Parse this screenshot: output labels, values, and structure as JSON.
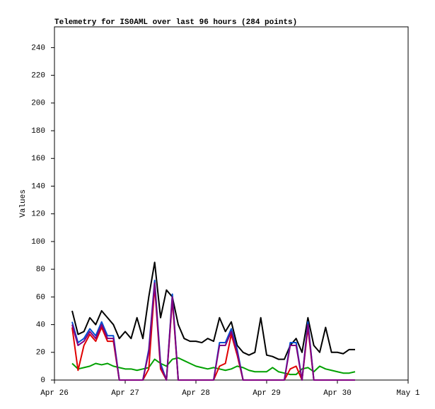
{
  "chart_data": {
    "type": "line",
    "title": "Telemetry for IS0AML over last 96 hours (284 points)",
    "y_label": "Values",
    "x": [
      6,
      8,
      10,
      12,
      14,
      16,
      18,
      20,
      22,
      24,
      26,
      28,
      30,
      32,
      34,
      36,
      38,
      40,
      42,
      44,
      46,
      48,
      50,
      52,
      54,
      56,
      58,
      60,
      62,
      64,
      66,
      68,
      70,
      72,
      74,
      76,
      78,
      80,
      82,
      84,
      86,
      88,
      90,
      92,
      94,
      96,
      98,
      100,
      102
    ],
    "xlim": [
      0,
      120
    ],
    "xticks": [
      {
        "value": 0,
        "label": "Apr 26"
      },
      {
        "value": 24,
        "label": "Apr 27"
      },
      {
        "value": 48,
        "label": "Apr 28"
      },
      {
        "value": 72,
        "label": "Apr 29"
      },
      {
        "value": 96,
        "label": "Apr 30"
      },
      {
        "value": 120,
        "label": "May 1"
      }
    ],
    "ylim": [
      0,
      255
    ],
    "yticks": [
      0,
      20,
      40,
      60,
      80,
      100,
      120,
      140,
      160,
      180,
      200,
      220,
      240
    ],
    "grid": false,
    "series": [
      {
        "color": "#000000",
        "values": [
          50,
          33,
          35,
          45,
          40,
          50,
          45,
          40,
          30,
          35,
          30,
          45,
          30,
          60,
          85,
          45,
          65,
          60,
          40,
          30,
          28,
          28,
          27,
          30,
          28,
          45,
          35,
          42,
          25,
          20,
          18,
          20,
          45,
          18,
          17,
          15,
          15,
          25,
          30,
          20,
          45,
          25,
          20,
          38,
          20,
          20,
          19,
          22,
          22
        ]
      },
      {
        "color": "#00a000",
        "values": [
          12,
          8,
          9,
          10,
          12,
          11,
          12,
          10,
          9,
          8,
          8,
          7,
          8,
          9,
          15,
          12,
          10,
          15,
          16,
          14,
          12,
          10,
          9,
          8,
          9,
          8,
          7,
          8,
          10,
          9,
          7,
          6,
          6,
          6,
          9,
          6,
          5,
          4,
          4,
          8,
          9,
          6,
          10,
          8,
          7,
          6,
          5,
          5,
          6
        ]
      },
      {
        "color": "#e00000",
        "values": [
          38,
          7,
          25,
          33,
          28,
          38,
          28,
          28,
          0,
          0,
          0,
          0,
          0,
          8,
          68,
          8,
          0,
          58,
          0,
          0,
          0,
          0,
          0,
          0,
          0,
          10,
          12,
          33,
          18,
          0,
          0,
          0,
          0,
          0,
          0,
          0,
          0,
          8,
          10,
          0,
          38,
          0,
          0,
          0,
          0,
          0,
          0,
          0,
          0
        ]
      },
      {
        "color": "#0050d0",
        "values": [
          42,
          27,
          30,
          37,
          32,
          42,
          32,
          32,
          0,
          0,
          0,
          0,
          0,
          22,
          72,
          12,
          0,
          62,
          0,
          0,
          0,
          0,
          0,
          0,
          0,
          27,
          27,
          37,
          22,
          0,
          0,
          0,
          0,
          0,
          0,
          0,
          0,
          27,
          27,
          0,
          42,
          0,
          0,
          0,
          0,
          0,
          0,
          0,
          0
        ]
      },
      {
        "color": "#800080",
        "values": [
          40,
          25,
          28,
          35,
          30,
          40,
          30,
          30,
          0,
          0,
          0,
          0,
          0,
          20,
          70,
          10,
          0,
          60,
          0,
          0,
          0,
          0,
          0,
          0,
          0,
          25,
          25,
          35,
          20,
          0,
          0,
          0,
          0,
          0,
          0,
          0,
          0,
          25,
          25,
          0,
          40,
          0,
          0,
          0,
          0,
          0,
          0,
          0,
          0
        ]
      }
    ]
  }
}
